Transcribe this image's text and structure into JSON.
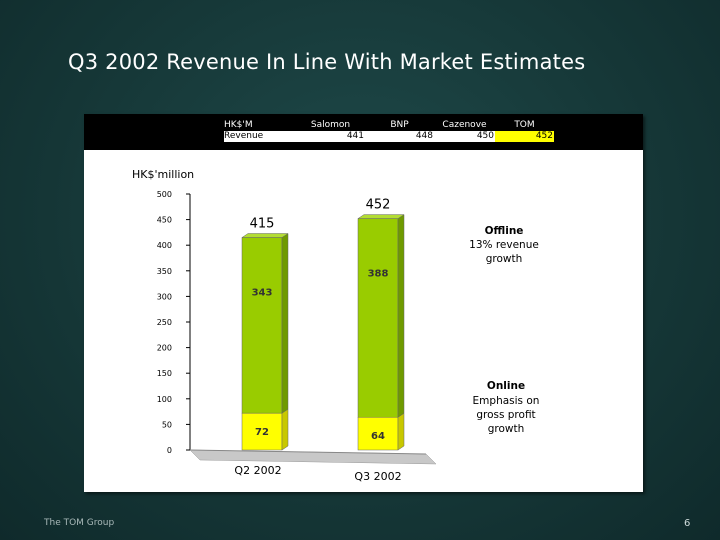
{
  "slide": {
    "title": "Q3 2002 Revenue In Line With Market Estimates",
    "footer_left": "The TOM Group",
    "page_number": "6"
  },
  "estimates": {
    "header": [
      "HK$'M",
      "Salomon",
      "BNP",
      "Cazenove",
      "TOM"
    ],
    "row_label": "Revenue",
    "values": [
      "441",
      "448",
      "450",
      "452"
    ],
    "highlight_color": "#ffff00"
  },
  "chart_data": {
    "type": "bar",
    "stacked": true,
    "ylabel": "HK$'million",
    "ylim": [
      0,
      500
    ],
    "yticks": [
      0,
      50,
      100,
      150,
      200,
      250,
      300,
      350,
      400,
      450,
      500
    ],
    "categories": [
      "Q2 2002",
      "Q3 2002"
    ],
    "series": [
      {
        "name": "Online",
        "values": [
          72,
          64
        ],
        "color": "#ffff00"
      },
      {
        "name": "Offline",
        "values": [
          343,
          388
        ],
        "color": "#99cc00"
      }
    ],
    "totals": [
      415,
      452
    ],
    "annotations": {
      "offline": [
        "Offline",
        "13% revenue",
        "growth"
      ],
      "online": [
        "Online",
        "Emphasis on",
        "gross profit",
        "growth"
      ]
    },
    "grid": false
  }
}
